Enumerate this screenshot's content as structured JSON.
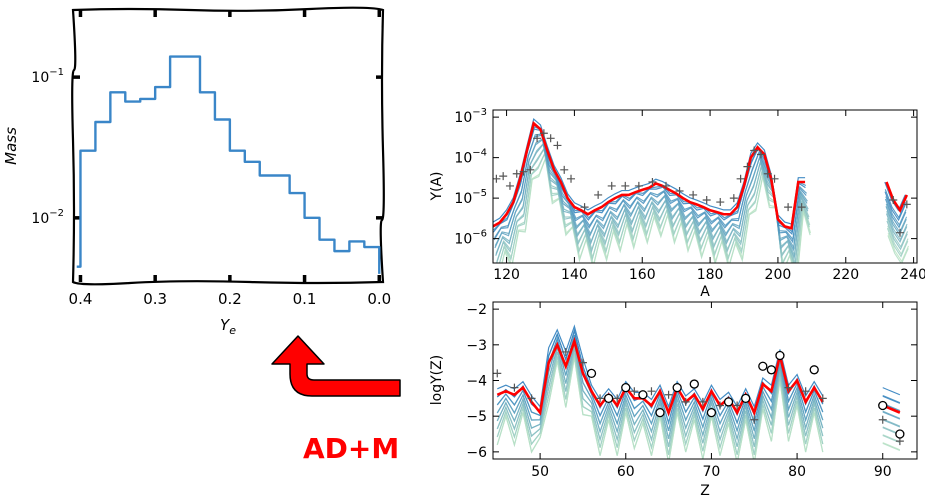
{
  "chart_data": [
    {
      "id": "ye-histogram",
      "type": "line",
      "style": "step",
      "x_axis_reversed": true,
      "yscale": "log",
      "xlabel": "Y_e",
      "ylabel": "Mass",
      "xlim": [
        0.41,
        -0.005
      ],
      "ylim": [
        0.0035,
        0.3
      ],
      "xticks": [
        0.4,
        0.3,
        0.2,
        0.1,
        0.0
      ],
      "xtick_labels": [
        "0.4",
        "0.3",
        "0.2",
        "0.1",
        "0.0"
      ],
      "yticks": [
        0.01,
        0.1
      ],
      "ytick_labels_base": [
        "10",
        "10"
      ],
      "ytick_labels_exp": [
        "−2",
        "−1"
      ],
      "line_color": "#3a86c8",
      "edges": [
        0.405,
        0.4,
        0.38,
        0.36,
        0.34,
        0.32,
        0.3,
        0.28,
        0.26,
        0.24,
        0.22,
        0.2,
        0.18,
        0.16,
        0.14,
        0.12,
        0.1,
        0.08,
        0.06,
        0.04,
        0.02,
        0.0
      ],
      "values": [
        0.0045,
        0.03,
        0.048,
        0.078,
        0.067,
        0.07,
        0.085,
        0.14,
        0.14,
        0.078,
        0.05,
        0.03,
        0.025,
        0.02,
        0.02,
        0.015,
        0.01,
        0.007,
        0.0058,
        0.0068,
        0.0062,
        0.004
      ]
    },
    {
      "id": "abundance-vs-A",
      "type": "line",
      "yscale": "log",
      "xlabel": "A",
      "ylabel": "Y(A)",
      "xlim": [
        116,
        241
      ],
      "ylim": [
        2.5e-07,
        0.0015
      ],
      "xticks": [
        120,
        140,
        160,
        180,
        200,
        220,
        240
      ],
      "yticks": [
        1e-06,
        1e-05,
        0.0001,
        0.001
      ],
      "ytick_labels_base": [
        "10",
        "10",
        "10",
        "10"
      ],
      "ytick_labels_exp": [
        "−6",
        "−5",
        "−4",
        "−3"
      ],
      "series": [
        {
          "role": "model-final",
          "color": "#ff0000",
          "x": [
            116,
            118,
            120,
            122,
            124,
            126,
            128,
            130,
            132,
            134,
            136,
            138,
            140,
            142,
            144,
            146,
            148,
            150,
            152,
            154,
            156,
            158,
            160,
            162,
            164,
            166,
            168,
            170,
            172,
            174,
            176,
            178,
            180,
            182,
            184,
            186,
            188,
            190,
            192,
            194,
            196,
            198,
            200,
            202,
            204,
            206,
            208
          ],
          "y": [
            2e-06,
            2.5e-06,
            4e-06,
            8e-06,
            3e-05,
            0.00015,
            0.0007,
            0.0005,
            0.00015,
            5e-05,
            2.5e-05,
            1e-05,
            6e-06,
            5e-06,
            4e-06,
            5e-06,
            6e-06,
            8e-06,
            1e-05,
            1.2e-05,
            1.2e-05,
            1.4e-05,
            1.6e-05,
            1.8e-05,
            2.3e-05,
            2e-05,
            1.6e-05,
            1.3e-05,
            1e-05,
            8e-06,
            7e-06,
            6e-06,
            5e-06,
            4.5e-06,
            4e-06,
            4e-06,
            6e-06,
            2e-05,
            0.0001,
            0.00018,
            0.00012,
            3e-05,
            3e-06,
            2e-06,
            1.8e-06,
            2.5e-05,
            2.5e-05
          ]
        },
        {
          "role": "model-final-isolated",
          "color": "#ff0000",
          "x": [
            232,
            234,
            236,
            238
          ],
          "y": [
            2.5e-05,
            9e-06,
            5e-06,
            1.2e-05
          ]
        },
        {
          "role": "solar-r",
          "marker": "+",
          "color": "#555555",
          "x": [
            117,
            119,
            121,
            123,
            125,
            127,
            129,
            131,
            133,
            135,
            137,
            139,
            143,
            147,
            151,
            155,
            159,
            163,
            167,
            171,
            175,
            179,
            183,
            187,
            189,
            191,
            193,
            195,
            197,
            199,
            203,
            207,
            234,
            236,
            238
          ],
          "y": [
            3e-05,
            3.5e-05,
            2e-05,
            4e-05,
            4.5e-05,
            5e-05,
            0.0003,
            0.0004,
            0.0003,
            0.0002,
            5e-05,
            3e-05,
            6e-06,
            1.2e-05,
            2e-05,
            2e-05,
            2e-05,
            2.5e-05,
            2e-05,
            1.5e-05,
            1.2e-05,
            9e-06,
            8e-06,
            1e-05,
            3e-05,
            6e-05,
            0.00015,
            0.00012,
            4e-05,
            3e-05,
            6e-06,
            6e-06,
            9e-06,
            1.4e-06,
            7e-06
          ]
        }
      ]
    },
    {
      "id": "abundance-vs-Z",
      "type": "line",
      "xlabel": "Z",
      "ylabel": "logY(Z)",
      "xlim": [
        44.5,
        94
      ],
      "ylim": [
        -6.2,
        -1.8
      ],
      "xticks": [
        50,
        60,
        70,
        80,
        90
      ],
      "yticks": [
        -6,
        -5,
        -4,
        -3,
        -2
      ],
      "ytick_labels": [
        "−6",
        "−5",
        "−4",
        "−3",
        "−2"
      ],
      "series": [
        {
          "role": "model-final",
          "color": "#ff0000",
          "x": [
            45,
            46,
            47,
            48,
            49,
            50,
            51,
            52,
            53,
            54,
            55,
            56,
            57,
            58,
            59,
            60,
            61,
            62,
            63,
            64,
            65,
            66,
            67,
            68,
            69,
            70,
            71,
            72,
            73,
            74,
            75,
            76,
            77,
            78,
            79,
            80,
            81,
            82,
            83
          ],
          "y": [
            -4.4,
            -4.3,
            -4.4,
            -4.2,
            -4.6,
            -4.9,
            -3.5,
            -3.0,
            -3.6,
            -2.9,
            -3.8,
            -4.3,
            -4.7,
            -4.4,
            -4.7,
            -4.2,
            -4.5,
            -4.5,
            -4.7,
            -4.3,
            -4.9,
            -4.2,
            -4.6,
            -4.4,
            -4.8,
            -4.3,
            -4.7,
            -4.5,
            -4.9,
            -4.4,
            -4.9,
            -4.1,
            -4.3,
            -3.3,
            -4.3,
            -4.0,
            -4.6,
            -4.2,
            -4.6
          ]
        },
        {
          "role": "model-final-isolated",
          "color": "#ff0000",
          "x": [
            90,
            92
          ],
          "y": [
            -4.7,
            -4.9
          ]
        },
        {
          "role": "solar-circles",
          "marker": "o",
          "color": "#000000",
          "x": [
            56,
            58,
            60,
            62,
            64,
            66,
            68,
            70,
            72,
            74,
            76,
            77,
            78,
            82,
            90,
            92
          ],
          "y": [
            -3.8,
            -4.5,
            -4.2,
            -4.4,
            -4.9,
            -4.2,
            -4.1,
            -4.9,
            -4.6,
            -4.5,
            -3.6,
            -3.7,
            -3.3,
            -3.7,
            -4.7,
            -5.5
          ]
        },
        {
          "role": "solar-plus",
          "marker": "+",
          "color": "#555555",
          "x": [
            45,
            47,
            49,
            53,
            55,
            57,
            59,
            61,
            63,
            65,
            67,
            69,
            71,
            73,
            75,
            79,
            81,
            83,
            90,
            92
          ],
          "y": [
            -3.8,
            -4.2,
            -4.5,
            -3.2,
            -3.5,
            -4.5,
            -4.5,
            -4.3,
            -4.3,
            -4.4,
            -4.6,
            -4.6,
            -4.7,
            -4.7,
            -5.1,
            -4.2,
            -4.3,
            -4.5,
            -5.1,
            -5.7
          ]
        }
      ]
    }
  ],
  "annotation": {
    "label": "AD+M",
    "color": "#ff0000"
  }
}
